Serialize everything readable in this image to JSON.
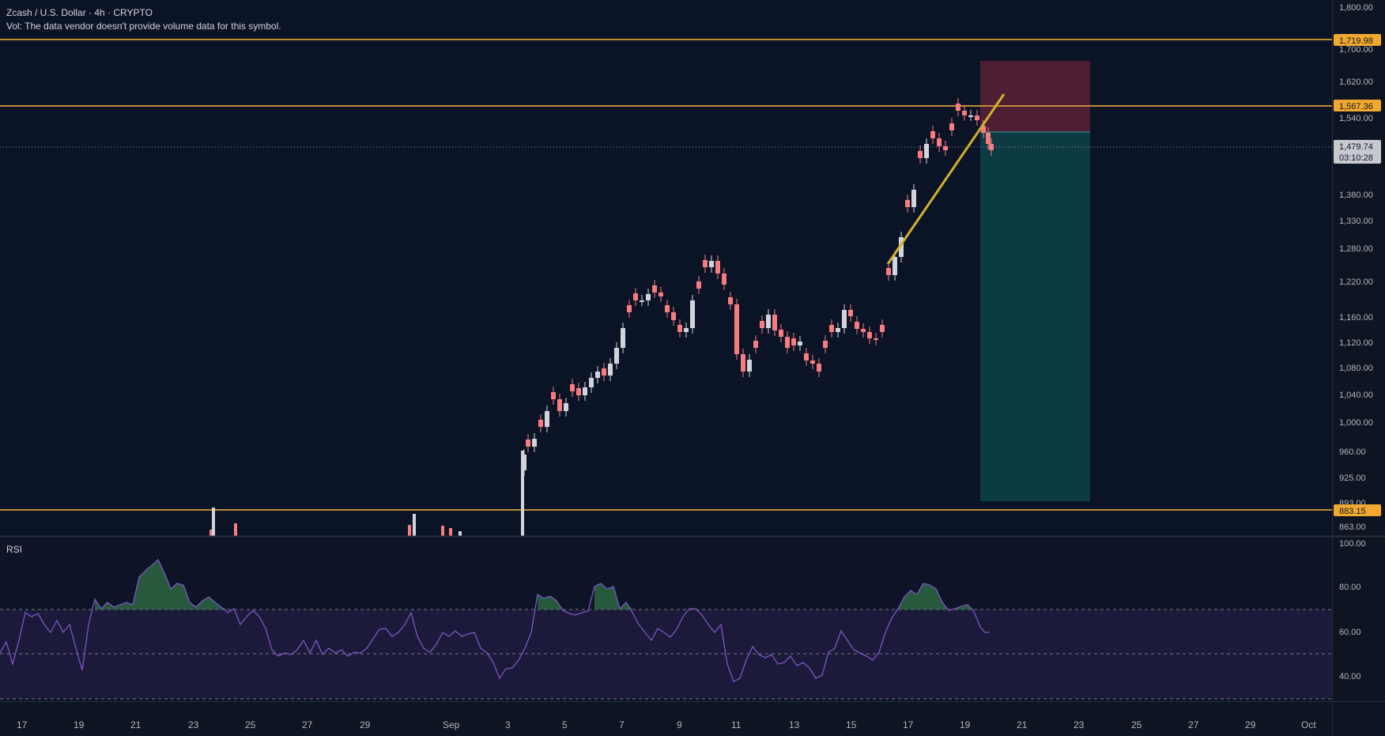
{
  "header": {
    "title": "Zcash / U.S. Dollar · 4h · CRYPTO",
    "volume_note": "Vol: The data vendor doesn't provide volume data for this symbol."
  },
  "price_axis": {
    "labels": [
      "1,800.00",
      "1,700.00",
      "1,620.00",
      "1,540.00",
      "1,380.00",
      "1,330.00",
      "1,280.00",
      "1,220.00",
      "1,160.00",
      "1,120.00",
      "1,080.00",
      "1,040.00",
      "1,000.00",
      "960.00",
      "925.00",
      "893.00",
      "863.00"
    ]
  },
  "price_tags": {
    "resistance_top": "1,719.98",
    "resistance_mid": "1,567.36",
    "support": "883.15",
    "current_price": "1,479.74",
    "countdown": "03:10:28"
  },
  "rsi": {
    "label": "RSI",
    "axis_labels": [
      "100.00",
      "80.00",
      "60.00",
      "40.00"
    ],
    "upper_band": 70,
    "middle_band": 50,
    "lower_band": 30
  },
  "time_axis": {
    "labels": [
      "17",
      "19",
      "21",
      "23",
      "25",
      "27",
      "29",
      "Sep",
      "3",
      "5",
      "7",
      "9",
      "11",
      "13",
      "15",
      "17",
      "19",
      "21",
      "23",
      "25",
      "27",
      "29",
      "Oct"
    ]
  },
  "chart_data": {
    "type": "candlestick",
    "symbol": "Zcash / U.S. Dollar",
    "interval": "4h",
    "ohlc_anchors": [
      {
        "date": "Sep 3",
        "close": 960
      },
      {
        "date": "Sep 6",
        "close": 1200
      },
      {
        "date": "Sep 9",
        "close": 1280
      },
      {
        "date": "Sep 11",
        "close": 1060
      },
      {
        "date": "Sep 12",
        "close": 1180
      },
      {
        "date": "Sep 13",
        "close": 1085
      },
      {
        "date": "Sep 14",
        "close": 1175
      },
      {
        "date": "Sep 15",
        "close": 1115
      },
      {
        "date": "Sep 17",
        "close": 1380
      },
      {
        "date": "Sep 18",
        "close": 1520
      },
      {
        "date": "Sep 19",
        "close": 1565
      },
      {
        "date": "Sep 20",
        "close": 1479.74
      }
    ],
    "horizontal_levels": [
      1719.98,
      1567.36,
      883.15
    ],
    "rsi_anchors": [
      {
        "date": "Aug 21",
        "value": 70
      },
      {
        "date": "Aug 22",
        "value": 88
      },
      {
        "date": "Sep 4",
        "value": 73
      },
      {
        "date": "Sep 6",
        "value": 80
      },
      {
        "date": "Sep 11",
        "value": 35
      },
      {
        "date": "Sep 18",
        "value": 80
      },
      {
        "date": "Sep 20",
        "value": 59
      }
    ],
    "rsi_range": [
      30,
      100
    ],
    "colors": {
      "up": "#d1d4dc",
      "down": "#f77c80",
      "level_line": "#c08b35",
      "trendline": "#d4b02c",
      "rsi_line": "#7e57c2",
      "risk_zone": "#5a2138",
      "reward_zone": "#0d3b44"
    }
  }
}
